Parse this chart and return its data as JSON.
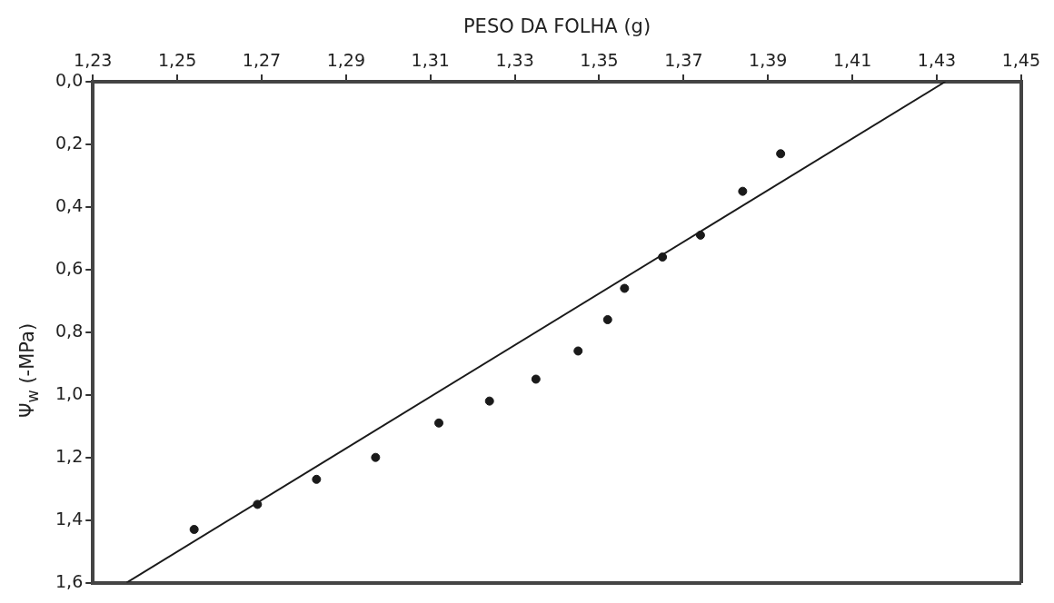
{
  "chart_data": {
    "type": "scatter",
    "xlabel": "PESO DA FOLHA (g)",
    "ylabel": "Ψ$_{w}$ (-MPa)",
    "xlim": [
      1.23,
      1.45
    ],
    "ylim": [
      1.6,
      0.0
    ],
    "xticks": [
      {
        "value": 1.23,
        "label": "1,23"
      },
      {
        "value": 1.25,
        "label": "1,25"
      },
      {
        "value": 1.27,
        "label": "1,27"
      },
      {
        "value": 1.29,
        "label": "1,29"
      },
      {
        "value": 1.31,
        "label": "1,31"
      },
      {
        "value": 1.33,
        "label": "1,33"
      },
      {
        "value": 1.35,
        "label": "1,35"
      },
      {
        "value": 1.37,
        "label": "1,37"
      },
      {
        "value": 1.39,
        "label": "1,39"
      },
      {
        "value": 1.41,
        "label": "1,41"
      },
      {
        "value": 1.43,
        "label": "1,43"
      },
      {
        "value": 1.45,
        "label": "1,45"
      }
    ],
    "yticks": [
      {
        "value": 0.0,
        "label": "0,0"
      },
      {
        "value": 0.2,
        "label": "0,2"
      },
      {
        "value": 0.4,
        "label": "0,4"
      },
      {
        "value": 0.6,
        "label": "0,6"
      },
      {
        "value": 0.8,
        "label": "0,8"
      },
      {
        "value": 1.0,
        "label": "1,0"
      },
      {
        "value": 1.2,
        "label": "1,2"
      },
      {
        "value": 1.4,
        "label": "1,4"
      },
      {
        "value": 1.6,
        "label": "1,6"
      }
    ],
    "grid": false,
    "legend": false,
    "marker": "circle",
    "series": [
      {
        "type": "scatter",
        "color": "#1a1a1a",
        "x": [
          1.254,
          1.269,
          1.283,
          1.297,
          1.312,
          1.324,
          1.335,
          1.345,
          1.352,
          1.356,
          1.365,
          1.374,
          1.384,
          1.393
        ],
        "values": [
          1.43,
          1.35,
          1.27,
          1.2,
          1.09,
          1.02,
          0.95,
          0.86,
          0.76,
          0.66,
          0.56,
          0.49,
          0.35,
          0.23
        ]
      },
      {
        "type": "line",
        "color": "#1a1a1a",
        "marker": "none",
        "x": [
          1.238,
          1.432
        ],
        "values": [
          1.6,
          0.0
        ]
      }
    ]
  }
}
